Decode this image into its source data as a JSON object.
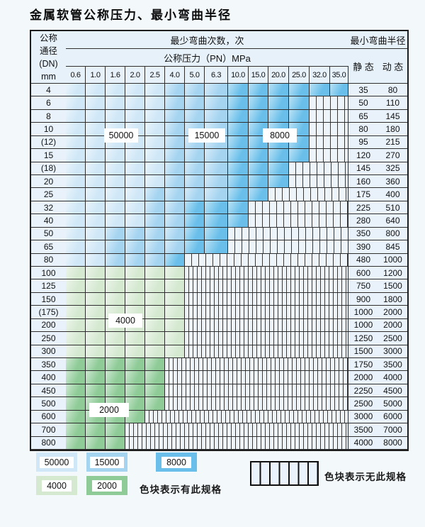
{
  "title": "金属软管公称压力、最小弯曲半径",
  "header": {
    "dn_lines": [
      "公称",
      "通径",
      "(DN)",
      "mm"
    ],
    "bend_times_label": "最少弯曲次数，次",
    "pressure_label": "公称压力（PN）MPa",
    "min_radius_label": "最小弯曲半径",
    "static_label": "静 态",
    "dynamic_label": "动 态",
    "pressures": [
      "0.6",
      "1.0",
      "1.6",
      "2.0",
      "2.5",
      "4.0",
      "5.0",
      "6.3",
      "10.0",
      "15.0",
      "20.0",
      "25.0",
      "32.0",
      "35.0"
    ]
  },
  "shade_values": {
    "b1": "50000",
    "b2": "15000",
    "b3": "8000",
    "g1": "4000",
    "g2": "2000",
    "x": "无此规格"
  },
  "rows": [
    {
      "dn": "4",
      "cells": [
        "b1",
        "b1",
        "b1",
        "b1",
        "b1",
        "b2",
        "b2",
        "b2",
        "b3",
        "b3",
        "b3",
        "b3",
        "b3",
        "b3"
      ],
      "static": "35",
      "dynamic": "80"
    },
    {
      "dn": "6",
      "cells": [
        "b1",
        "b1",
        "b1",
        "b1",
        "b1",
        "b2",
        "b2",
        "b2",
        "b3",
        "b3",
        "b3",
        "b3",
        "x",
        "x"
      ],
      "static": "50",
      "dynamic": "110"
    },
    {
      "dn": "8",
      "cells": [
        "b1",
        "b1",
        "b1",
        "b1",
        "b1",
        "b2",
        "b2",
        "b2",
        "b3",
        "b3",
        "b3",
        "b3",
        "x",
        "x"
      ],
      "static": "65",
      "dynamic": "145"
    },
    {
      "dn": "10",
      "cells": [
        "b1",
        "b1",
        "b1",
        "b1",
        "b1",
        "b2",
        "b2",
        "b2",
        "b3",
        "b3",
        "b3",
        "b3",
        "x",
        "x"
      ],
      "static": "80",
      "dynamic": "180"
    },
    {
      "dn": "(12)",
      "cells": [
        "b1",
        "b1",
        "b1",
        "b1",
        "b1",
        "b2",
        "b2",
        "b2",
        "b3",
        "b3",
        "b3",
        "b3",
        "x",
        "x"
      ],
      "static": "95",
      "dynamic": "215"
    },
    {
      "dn": "15",
      "cells": [
        "b1",
        "b1",
        "b1",
        "b1",
        "b1",
        "b2",
        "b2",
        "b2",
        "b3",
        "b3",
        "b3",
        "b3",
        "x",
        "x"
      ],
      "static": "120",
      "dynamic": "270"
    },
    {
      "dn": "(18)",
      "cells": [
        "b1",
        "b1",
        "b1",
        "b1",
        "b1",
        "b2",
        "b2",
        "b2",
        "b3",
        "b3",
        "b3",
        "x",
        "x",
        "x"
      ],
      "static": "145",
      "dynamic": "325"
    },
    {
      "dn": "20",
      "cells": [
        "b1",
        "b1",
        "b1",
        "b1",
        "b1",
        "b2",
        "b2",
        "b2",
        "b3",
        "b3",
        "b3",
        "x",
        "x",
        "x"
      ],
      "static": "160",
      "dynamic": "360"
    },
    {
      "dn": "25",
      "cells": [
        "b1",
        "b1",
        "b1",
        "b1",
        "b2",
        "b2",
        "b2",
        "b2",
        "b3",
        "b3",
        "x",
        "x",
        "x",
        "x"
      ],
      "static": "175",
      "dynamic": "400"
    },
    {
      "dn": "32",
      "cells": [
        "b1",
        "b1",
        "b1",
        "b1",
        "b2",
        "b2",
        "b3",
        "b3",
        "b3",
        "x",
        "x",
        "x",
        "x",
        "x"
      ],
      "static": "225",
      "dynamic": "510"
    },
    {
      "dn": "40",
      "cells": [
        "b1",
        "b1",
        "b1",
        "b1",
        "b2",
        "b2",
        "b3",
        "b3",
        "b3",
        "x",
        "x",
        "x",
        "x",
        "x"
      ],
      "static": "280",
      "dynamic": "640"
    },
    {
      "dn": "50",
      "cells": [
        "b1",
        "b1",
        "b2",
        "b2",
        "b2",
        "b2",
        "b3",
        "b3",
        "x",
        "x",
        "x",
        "x",
        "x",
        "x"
      ],
      "static": "350",
      "dynamic": "800"
    },
    {
      "dn": "65",
      "cells": [
        "b1",
        "b1",
        "b2",
        "b2",
        "b2",
        "b2",
        "b3",
        "b3",
        "x",
        "x",
        "x",
        "x",
        "x",
        "x"
      ],
      "static": "390",
      "dynamic": "845"
    },
    {
      "dn": "80",
      "cells": [
        "b1",
        "b1",
        "b2",
        "b2",
        "b2",
        "b3",
        "x",
        "x",
        "x",
        "x",
        "x",
        "x",
        "x",
        "x"
      ],
      "static": "480",
      "dynamic": "1000"
    },
    {
      "dn": "100",
      "cells": [
        "g1",
        "g1",
        "g1",
        "g1",
        "g1",
        "g1",
        "x",
        "x",
        "x",
        "x",
        "x",
        "x",
        "x",
        "x"
      ],
      "static": "600",
      "dynamic": "1200"
    },
    {
      "dn": "125",
      "cells": [
        "g1",
        "g1",
        "g1",
        "g1",
        "g1",
        "g1",
        "x",
        "x",
        "x",
        "x",
        "x",
        "x",
        "x",
        "x"
      ],
      "static": "750",
      "dynamic": "1500"
    },
    {
      "dn": "150",
      "cells": [
        "g1",
        "g1",
        "g1",
        "g1",
        "g1",
        "g1",
        "x",
        "x",
        "x",
        "x",
        "x",
        "x",
        "x",
        "x"
      ],
      "static": "900",
      "dynamic": "1800"
    },
    {
      "dn": "(175)",
      "cells": [
        "g1",
        "g1",
        "g1",
        "g1",
        "g1",
        "g1",
        "x",
        "x",
        "x",
        "x",
        "x",
        "x",
        "x",
        "x"
      ],
      "static": "1000",
      "dynamic": "2000"
    },
    {
      "dn": "200",
      "cells": [
        "g1",
        "g1",
        "g1",
        "g1",
        "g1",
        "g1",
        "x",
        "x",
        "x",
        "x",
        "x",
        "x",
        "x",
        "x"
      ],
      "static": "1000",
      "dynamic": "2000"
    },
    {
      "dn": "250",
      "cells": [
        "g1",
        "g1",
        "g1",
        "g1",
        "g1",
        "g1",
        "x",
        "x",
        "x",
        "x",
        "x",
        "x",
        "x",
        "x"
      ],
      "static": "1250",
      "dynamic": "2500"
    },
    {
      "dn": "300",
      "cells": [
        "g1",
        "g1",
        "g1",
        "g1",
        "g1",
        "g1",
        "x",
        "x",
        "x",
        "x",
        "x",
        "x",
        "x",
        "x"
      ],
      "static": "1500",
      "dynamic": "3000"
    },
    {
      "dn": "350",
      "cells": [
        "g2",
        "g2",
        "g2",
        "g2",
        "g2",
        "x",
        "x",
        "x",
        "x",
        "x",
        "x",
        "x",
        "x",
        "x"
      ],
      "static": "1750",
      "dynamic": "3500"
    },
    {
      "dn": "400",
      "cells": [
        "g2",
        "g2",
        "g2",
        "g2",
        "g2",
        "x",
        "x",
        "x",
        "x",
        "x",
        "x",
        "x",
        "x",
        "x"
      ],
      "static": "2000",
      "dynamic": "4000"
    },
    {
      "dn": "450",
      "cells": [
        "g2",
        "g2",
        "g2",
        "g2",
        "g2",
        "x",
        "x",
        "x",
        "x",
        "x",
        "x",
        "x",
        "x",
        "x"
      ],
      "static": "2250",
      "dynamic": "4500"
    },
    {
      "dn": "500",
      "cells": [
        "g2",
        "g2",
        "g2",
        "g2",
        "g2",
        "x",
        "x",
        "x",
        "x",
        "x",
        "x",
        "x",
        "x",
        "x"
      ],
      "static": "2500",
      "dynamic": "5000"
    },
    {
      "dn": "600",
      "cells": [
        "g2",
        "g2",
        "g2",
        "g2",
        "x",
        "x",
        "x",
        "x",
        "x",
        "x",
        "x",
        "x",
        "x",
        "x"
      ],
      "static": "3000",
      "dynamic": "6000"
    },
    {
      "dn": "700",
      "cells": [
        "g2",
        "g2",
        "g2",
        "x",
        "x",
        "x",
        "x",
        "x",
        "x",
        "x",
        "x",
        "x",
        "x",
        "x"
      ],
      "static": "3500",
      "dynamic": "7000"
    },
    {
      "dn": "800",
      "cells": [
        "g2",
        "g2",
        "g2",
        "x",
        "x",
        "x",
        "x",
        "x",
        "x",
        "x",
        "x",
        "x",
        "x",
        "x"
      ],
      "static": "4000",
      "dynamic": "8000"
    }
  ],
  "region_labels": [
    {
      "id": "lbl-50000",
      "text": "50000"
    },
    {
      "id": "lbl-15000",
      "text": "15000"
    },
    {
      "id": "lbl-8000",
      "text": "8000"
    },
    {
      "id": "lbl-4000",
      "text": "4000"
    },
    {
      "id": "lbl-2000",
      "text": "2000"
    }
  ],
  "legend": {
    "swatches": [
      {
        "id": "sw-50000",
        "value": "50000",
        "shade": "b1"
      },
      {
        "id": "sw-15000",
        "value": "15000",
        "shade": "b2"
      },
      {
        "id": "sw-8000",
        "value": "8000",
        "shade": "b3"
      },
      {
        "id": "sw-4000",
        "value": "4000",
        "shade": "g1"
      },
      {
        "id": "sw-2000",
        "value": "2000",
        "shade": "g2"
      }
    ],
    "available_label": "色块表示有此规格",
    "unavailable_label": "色块表示无此规格"
  },
  "colors": {
    "blue_50000": "#cfe7f7",
    "blue_15000": "#a5d4f1",
    "blue_8000": "#69bfea",
    "green_4000": "#d5e9d1",
    "green_2000": "#8ecb97",
    "grid_line": "#2f2f2f",
    "page_bg": "#f3f8fb"
  }
}
